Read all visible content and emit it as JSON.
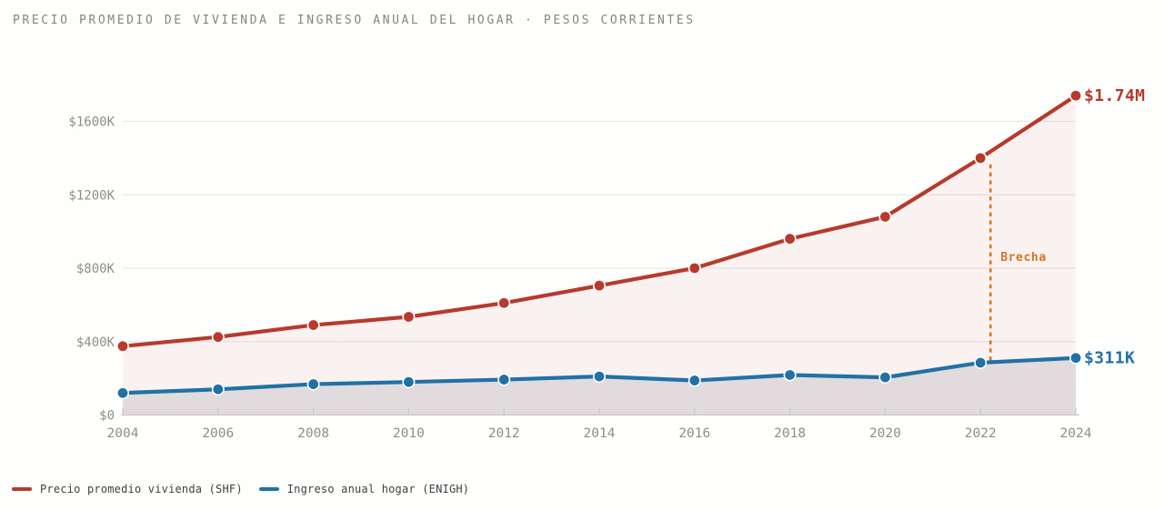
{
  "header": {
    "title": "PRECIO PROMEDIO DE VIVIENDA E INGRESO ANUAL DEL HOGAR · PESOS CORRIENTES"
  },
  "colors": {
    "background": "#fefefd",
    "title_text": "#8b8478",
    "axis_text": "#8e8d8a",
    "axis_line": "#c9c9c4",
    "gridline": "#e9e9e9",
    "series_red": "#b73a2d",
    "series_blue": "#2171a5",
    "annotation_orange": "#d9731f",
    "legend_text": "#3f3f3c"
  },
  "chart_data": {
    "type": "line",
    "title": "PRECIO PROMEDIO DE VIVIENDA E INGRESO ANUAL DEL HOGAR · PESOS CORRIENTES",
    "x": [
      2004,
      2006,
      2008,
      2010,
      2012,
      2014,
      2016,
      2018,
      2020,
      2022,
      2024
    ],
    "xlabel": "",
    "ylabel": "",
    "xtick_labels": [
      "2004",
      "2006",
      "2008",
      "2010",
      "2012",
      "2014",
      "2016",
      "2018",
      "2020",
      "2022",
      "2024"
    ],
    "yticks": {
      "values_thousands": [
        0,
        400,
        800,
        1200,
        1600
      ],
      "labels": [
        "$0",
        "$400K",
        "$800K",
        "$1200K",
        "$1600K"
      ]
    },
    "ylim_thousands": [
      0,
      1740
    ],
    "grid": true,
    "legend_position": "bottom",
    "series": [
      {
        "name": "Precio promedio vivienda (SHF)",
        "color": "#b73a2d",
        "area_fill": "rgba(183,58,45,0.06)",
        "end_label": "$1.74M",
        "values_thousands": [
          375,
          425,
          490,
          535,
          610,
          705,
          800,
          960,
          1080,
          1400,
          1740
        ]
      },
      {
        "name": "Ingreso anual hogar (ENIGH)",
        "color": "#2171a5",
        "area_fill": "rgba(99,101,126,0.16)",
        "end_label": "$311K",
        "values_thousands": [
          120,
          140,
          168,
          180,
          193,
          210,
          188,
          218,
          205,
          285,
          311
        ]
      }
    ],
    "annotation": {
      "label": "Brecha",
      "x_year": 2022,
      "style": "dashed-vertical",
      "color": "#d9731f",
      "spans": "from red series down to blue series"
    }
  },
  "legend": {
    "items": [
      {
        "label": "Precio promedio vivienda (SHF)",
        "color": "#b73a2d"
      },
      {
        "label": "Ingreso anual hogar (ENIGH)",
        "color": "#2171a5"
      }
    ]
  }
}
